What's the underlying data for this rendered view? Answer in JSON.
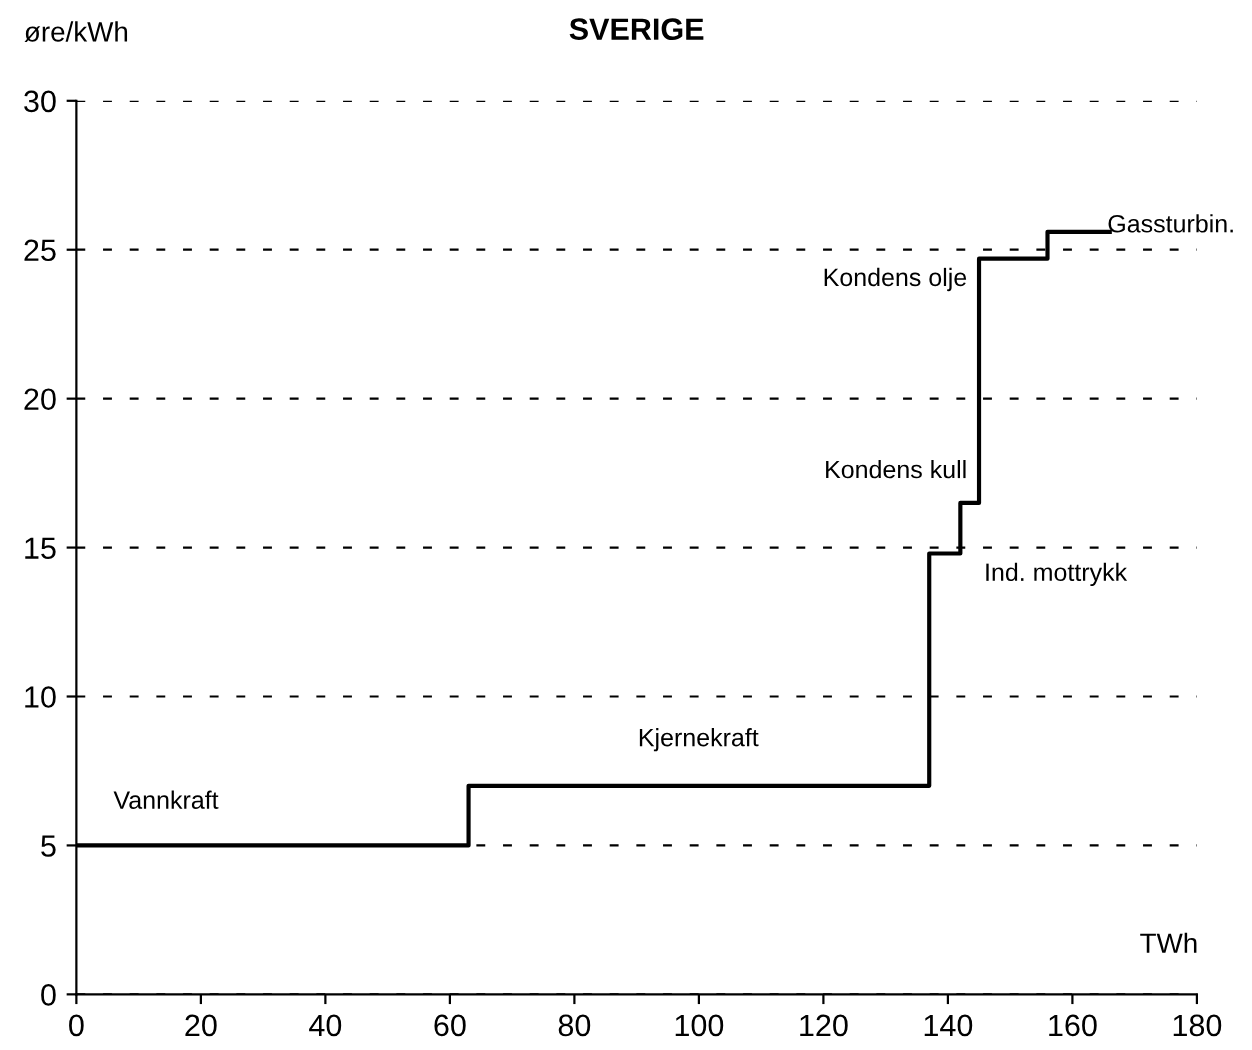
{
  "chart_data": {
    "type": "step",
    "title": "SVERIGE",
    "xlabel": "TWh",
    "ylabel": "øre/kWh",
    "x": [
      0,
      63,
      137,
      142,
      145,
      156,
      166
    ],
    "series": [
      {
        "color": "#000000",
        "values": [
          5,
          7,
          14.8,
          16.5,
          24.7,
          25.6,
          25.6
        ]
      }
    ],
    "xlim": [
      0,
      180
    ],
    "xticks": [
      0,
      20,
      40,
      60,
      80,
      100,
      120,
      140,
      160,
      180
    ],
    "ylim": [
      0,
      30
    ],
    "yticks": [
      0,
      5,
      10,
      15,
      20,
      25,
      30
    ],
    "grid": "y",
    "legend": false,
    "annotations": [
      "Vannkraft",
      "Kjernekraft",
      "Ind. mottrykk",
      "Kondens kull",
      "Kondens olje",
      "Gassturbin."
    ]
  }
}
